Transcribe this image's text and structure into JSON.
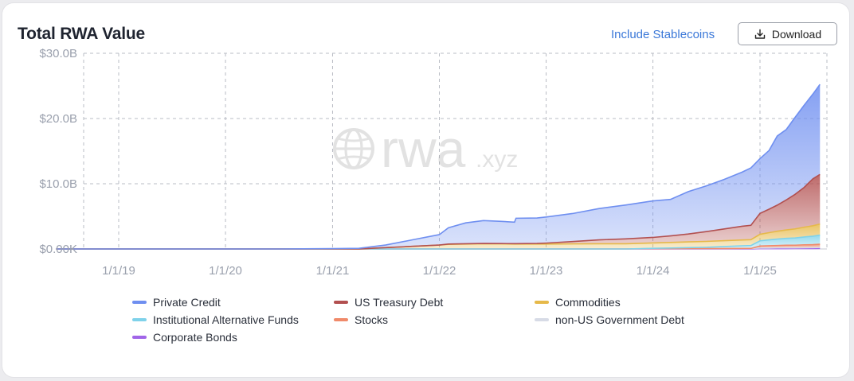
{
  "header": {
    "title": "Total RWA Value",
    "stablecoins_link": "Include Stablecoins",
    "download_label": "Download"
  },
  "watermark": {
    "text": "rwa",
    "suffix": ".xyz"
  },
  "chart_data": {
    "type": "area",
    "title": "Total RWA Value",
    "stacked": true,
    "grid": true,
    "grid_style": "dashed",
    "legend_position": "bottom",
    "ylim": [
      0,
      30
    ],
    "y_unit": "B USD",
    "y_ticks": [
      {
        "value": 0,
        "label": "$0.00K"
      },
      {
        "value": 10,
        "label": "$10.0B"
      },
      {
        "value": 20,
        "label": "$20.0B"
      },
      {
        "value": 30,
        "label": "$30.0B"
      }
    ],
    "x_ticks": [
      "1/1/19",
      "1/1/20",
      "1/1/21",
      "1/1/22",
      "1/1/23",
      "1/1/24",
      "1/1/25"
    ],
    "x": [
      "2018-06-01",
      "2019-01-01",
      "2020-01-01",
      "2020-07-01",
      "2021-01-01",
      "2021-04-01",
      "2021-07-01",
      "2021-10-01",
      "2022-01-01",
      "2022-02-01",
      "2022-04-01",
      "2022-06-01",
      "2022-08-01",
      "2022-09-15",
      "2022-09-20",
      "2022-12-01",
      "2023-01-01",
      "2023-04-01",
      "2023-07-01",
      "2023-10-01",
      "2024-01-01",
      "2024-03-01",
      "2024-05-01",
      "2024-07-01",
      "2024-09-01",
      "2024-11-01",
      "2024-12-01",
      "2025-01-01",
      "2025-02-01",
      "2025-03-01",
      "2025-04-01",
      "2025-05-01",
      "2025-06-01",
      "2025-07-01",
      "2025-07-25"
    ],
    "series": [
      {
        "name": "Private Credit",
        "color": "#6f8ff0",
        "values": [
          0,
          0,
          0,
          0,
          0.05,
          0.1,
          0.4,
          1.0,
          1.6,
          2.5,
          3.2,
          3.5,
          3.4,
          3.3,
          3.9,
          3.9,
          4.0,
          4.3,
          4.8,
          5.2,
          5.6,
          5.6,
          6.5,
          7.0,
          7.6,
          8.3,
          8.8,
          8.4,
          9.0,
          10.6,
          10.8,
          11.8,
          12.6,
          13.0,
          13.8
        ]
      },
      {
        "name": "US Treasury Debt",
        "color": "#b25050",
        "values": [
          0,
          0,
          0,
          0,
          0,
          0,
          0,
          0,
          0,
          0.05,
          0.05,
          0.05,
          0.05,
          0.06,
          0.06,
          0.1,
          0.15,
          0.35,
          0.6,
          0.75,
          0.85,
          1.0,
          1.2,
          1.5,
          1.8,
          2.1,
          2.2,
          3.2,
          3.6,
          4.0,
          4.6,
          5.3,
          6.1,
          7.2,
          7.6
        ]
      },
      {
        "name": "Commodities",
        "color": "#e6b94a",
        "values": [
          0,
          0,
          0,
          0,
          0,
          0,
          0.2,
          0.4,
          0.6,
          0.7,
          0.75,
          0.8,
          0.78,
          0.75,
          0.75,
          0.75,
          0.75,
          0.78,
          0.8,
          0.8,
          0.82,
          0.85,
          0.88,
          0.9,
          0.9,
          0.9,
          0.9,
          1.0,
          1.1,
          1.2,
          1.3,
          1.4,
          1.5,
          1.6,
          1.7
        ]
      },
      {
        "name": "Institutional Alternative Funds",
        "color": "#7fd2ea",
        "values": [
          0,
          0,
          0,
          0,
          0,
          0,
          0,
          0,
          0,
          0,
          0,
          0,
          0,
          0,
          0,
          0,
          0,
          0,
          0,
          0,
          0.05,
          0.1,
          0.15,
          0.2,
          0.3,
          0.4,
          0.45,
          0.8,
          0.9,
          1.0,
          1.05,
          1.1,
          1.2,
          1.3,
          1.4
        ]
      },
      {
        "name": "Stocks",
        "color": "#f08a6a",
        "values": [
          0,
          0,
          0,
          0,
          0,
          0,
          0,
          0,
          0,
          0,
          0,
          0,
          0,
          0,
          0,
          0,
          0,
          0,
          0,
          0,
          0,
          0,
          0,
          0,
          0,
          0,
          0,
          0.3,
          0.35,
          0.35,
          0.4,
          0.4,
          0.45,
          0.45,
          0.5
        ]
      },
      {
        "name": "non-US Government Debt",
        "color": "#d7dbe6",
        "values": [
          0,
          0,
          0,
          0,
          0,
          0,
          0,
          0,
          0,
          0,
          0,
          0,
          0,
          0,
          0,
          0,
          0,
          0,
          0,
          0,
          0.05,
          0.05,
          0.06,
          0.06,
          0.07,
          0.08,
          0.08,
          0.1,
          0.1,
          0.12,
          0.12,
          0.12,
          0.13,
          0.14,
          0.15
        ]
      },
      {
        "name": "Corporate Bonds",
        "color": "#a165e8",
        "values": [
          0,
          0,
          0,
          0,
          0,
          0,
          0,
          0,
          0,
          0,
          0,
          0,
          0,
          0,
          0,
          0,
          0,
          0,
          0,
          0,
          0,
          0,
          0,
          0,
          0,
          0,
          0,
          0.05,
          0.05,
          0.05,
          0.05,
          0.06,
          0.06,
          0.07,
          0.08
        ]
      }
    ]
  }
}
